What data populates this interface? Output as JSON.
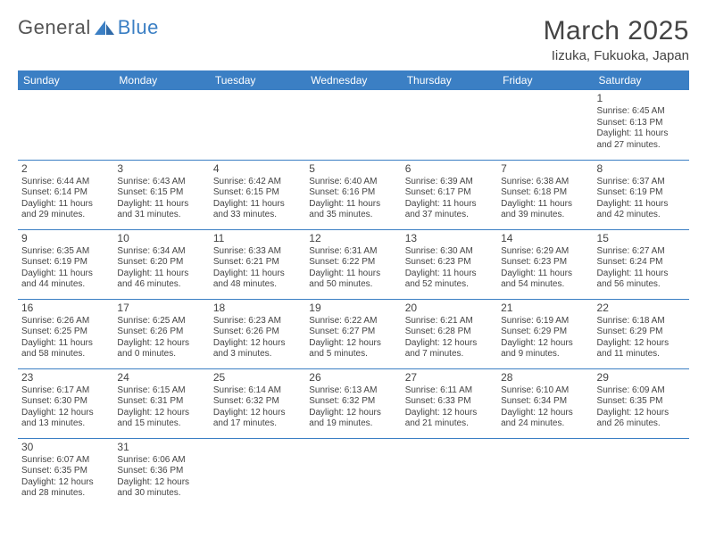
{
  "brand": {
    "part1": "General",
    "part2": "Blue"
  },
  "title": "March 2025",
  "location": "Iizuka, Fukuoka, Japan",
  "header_bg": "#3b7fc4",
  "header_fg": "#ffffff",
  "border_color": "#3b7fc4",
  "text_color": "#444444",
  "dayHeaders": [
    "Sunday",
    "Monday",
    "Tuesday",
    "Wednesday",
    "Thursday",
    "Friday",
    "Saturday"
  ],
  "weeks": [
    [
      null,
      null,
      null,
      null,
      null,
      null,
      {
        "n": "1",
        "sr": "Sunrise: 6:45 AM",
        "ss": "Sunset: 6:13 PM",
        "d1": "Daylight: 11 hours",
        "d2": "and 27 minutes."
      }
    ],
    [
      {
        "n": "2",
        "sr": "Sunrise: 6:44 AM",
        "ss": "Sunset: 6:14 PM",
        "d1": "Daylight: 11 hours",
        "d2": "and 29 minutes."
      },
      {
        "n": "3",
        "sr": "Sunrise: 6:43 AM",
        "ss": "Sunset: 6:15 PM",
        "d1": "Daylight: 11 hours",
        "d2": "and 31 minutes."
      },
      {
        "n": "4",
        "sr": "Sunrise: 6:42 AM",
        "ss": "Sunset: 6:15 PM",
        "d1": "Daylight: 11 hours",
        "d2": "and 33 minutes."
      },
      {
        "n": "5",
        "sr": "Sunrise: 6:40 AM",
        "ss": "Sunset: 6:16 PM",
        "d1": "Daylight: 11 hours",
        "d2": "and 35 minutes."
      },
      {
        "n": "6",
        "sr": "Sunrise: 6:39 AM",
        "ss": "Sunset: 6:17 PM",
        "d1": "Daylight: 11 hours",
        "d2": "and 37 minutes."
      },
      {
        "n": "7",
        "sr": "Sunrise: 6:38 AM",
        "ss": "Sunset: 6:18 PM",
        "d1": "Daylight: 11 hours",
        "d2": "and 39 minutes."
      },
      {
        "n": "8",
        "sr": "Sunrise: 6:37 AM",
        "ss": "Sunset: 6:19 PM",
        "d1": "Daylight: 11 hours",
        "d2": "and 42 minutes."
      }
    ],
    [
      {
        "n": "9",
        "sr": "Sunrise: 6:35 AM",
        "ss": "Sunset: 6:19 PM",
        "d1": "Daylight: 11 hours",
        "d2": "and 44 minutes."
      },
      {
        "n": "10",
        "sr": "Sunrise: 6:34 AM",
        "ss": "Sunset: 6:20 PM",
        "d1": "Daylight: 11 hours",
        "d2": "and 46 minutes."
      },
      {
        "n": "11",
        "sr": "Sunrise: 6:33 AM",
        "ss": "Sunset: 6:21 PM",
        "d1": "Daylight: 11 hours",
        "d2": "and 48 minutes."
      },
      {
        "n": "12",
        "sr": "Sunrise: 6:31 AM",
        "ss": "Sunset: 6:22 PM",
        "d1": "Daylight: 11 hours",
        "d2": "and 50 minutes."
      },
      {
        "n": "13",
        "sr": "Sunrise: 6:30 AM",
        "ss": "Sunset: 6:23 PM",
        "d1": "Daylight: 11 hours",
        "d2": "and 52 minutes."
      },
      {
        "n": "14",
        "sr": "Sunrise: 6:29 AM",
        "ss": "Sunset: 6:23 PM",
        "d1": "Daylight: 11 hours",
        "d2": "and 54 minutes."
      },
      {
        "n": "15",
        "sr": "Sunrise: 6:27 AM",
        "ss": "Sunset: 6:24 PM",
        "d1": "Daylight: 11 hours",
        "d2": "and 56 minutes."
      }
    ],
    [
      {
        "n": "16",
        "sr": "Sunrise: 6:26 AM",
        "ss": "Sunset: 6:25 PM",
        "d1": "Daylight: 11 hours",
        "d2": "and 58 minutes."
      },
      {
        "n": "17",
        "sr": "Sunrise: 6:25 AM",
        "ss": "Sunset: 6:26 PM",
        "d1": "Daylight: 12 hours",
        "d2": "and 0 minutes."
      },
      {
        "n": "18",
        "sr": "Sunrise: 6:23 AM",
        "ss": "Sunset: 6:26 PM",
        "d1": "Daylight: 12 hours",
        "d2": "and 3 minutes."
      },
      {
        "n": "19",
        "sr": "Sunrise: 6:22 AM",
        "ss": "Sunset: 6:27 PM",
        "d1": "Daylight: 12 hours",
        "d2": "and 5 minutes."
      },
      {
        "n": "20",
        "sr": "Sunrise: 6:21 AM",
        "ss": "Sunset: 6:28 PM",
        "d1": "Daylight: 12 hours",
        "d2": "and 7 minutes."
      },
      {
        "n": "21",
        "sr": "Sunrise: 6:19 AM",
        "ss": "Sunset: 6:29 PM",
        "d1": "Daylight: 12 hours",
        "d2": "and 9 minutes."
      },
      {
        "n": "22",
        "sr": "Sunrise: 6:18 AM",
        "ss": "Sunset: 6:29 PM",
        "d1": "Daylight: 12 hours",
        "d2": "and 11 minutes."
      }
    ],
    [
      {
        "n": "23",
        "sr": "Sunrise: 6:17 AM",
        "ss": "Sunset: 6:30 PM",
        "d1": "Daylight: 12 hours",
        "d2": "and 13 minutes."
      },
      {
        "n": "24",
        "sr": "Sunrise: 6:15 AM",
        "ss": "Sunset: 6:31 PM",
        "d1": "Daylight: 12 hours",
        "d2": "and 15 minutes."
      },
      {
        "n": "25",
        "sr": "Sunrise: 6:14 AM",
        "ss": "Sunset: 6:32 PM",
        "d1": "Daylight: 12 hours",
        "d2": "and 17 minutes."
      },
      {
        "n": "26",
        "sr": "Sunrise: 6:13 AM",
        "ss": "Sunset: 6:32 PM",
        "d1": "Daylight: 12 hours",
        "d2": "and 19 minutes."
      },
      {
        "n": "27",
        "sr": "Sunrise: 6:11 AM",
        "ss": "Sunset: 6:33 PM",
        "d1": "Daylight: 12 hours",
        "d2": "and 21 minutes."
      },
      {
        "n": "28",
        "sr": "Sunrise: 6:10 AM",
        "ss": "Sunset: 6:34 PM",
        "d1": "Daylight: 12 hours",
        "d2": "and 24 minutes."
      },
      {
        "n": "29",
        "sr": "Sunrise: 6:09 AM",
        "ss": "Sunset: 6:35 PM",
        "d1": "Daylight: 12 hours",
        "d2": "and 26 minutes."
      }
    ],
    [
      {
        "n": "30",
        "sr": "Sunrise: 6:07 AM",
        "ss": "Sunset: 6:35 PM",
        "d1": "Daylight: 12 hours",
        "d2": "and 28 minutes."
      },
      {
        "n": "31",
        "sr": "Sunrise: 6:06 AM",
        "ss": "Sunset: 6:36 PM",
        "d1": "Daylight: 12 hours",
        "d2": "and 30 minutes."
      },
      null,
      null,
      null,
      null,
      null
    ]
  ]
}
